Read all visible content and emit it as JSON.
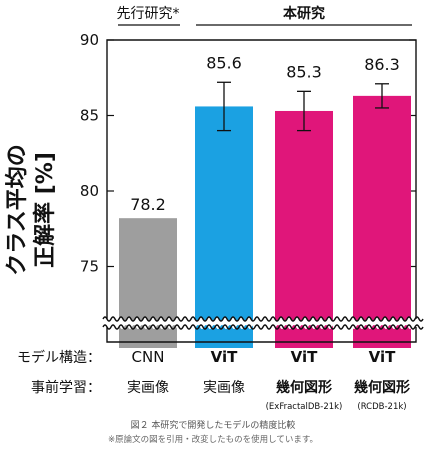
{
  "chart_data": {
    "type": "bar",
    "ylabel_line1": "クラス平均の",
    "ylabel_line2": "正解率 [%]",
    "ylim": [
      70,
      90
    ],
    "axis_break": true,
    "yticks": [
      "75",
      "80",
      "85",
      "90"
    ],
    "group_labels": {
      "prior": "先行研究*",
      "this": "本研究"
    },
    "row_labels": {
      "model": "モデル構造：",
      "pretrain": "事前学習："
    },
    "bars": [
      {
        "model": "CNN",
        "pretrain": "実画像",
        "pretrain_sub": "",
        "value": 78.2,
        "value_label": "78.2",
        "err": null,
        "color": "#9e9e9e"
      },
      {
        "model": "ViT",
        "pretrain": "実画像",
        "pretrain_sub": "",
        "value": 85.6,
        "value_label": "85.6",
        "err": 1.6,
        "color": "#1ba1e2"
      },
      {
        "model": "ViT",
        "pretrain": "幾何図形",
        "pretrain_sub": "(ExFractalDB-21k)",
        "value": 85.3,
        "value_label": "85.3",
        "err": 1.3,
        "color": "#e0167a"
      },
      {
        "model": "ViT",
        "pretrain": "幾何図形",
        "pretrain_sub": "(RCDB-21k)",
        "value": 86.3,
        "value_label": "86.3",
        "err": 0.8,
        "color": "#e0167a"
      }
    ]
  },
  "caption": "図２ 本研究で開発したモデルの精度比較",
  "note": "※原論文の図を引用・改変したものを使用しています。"
}
